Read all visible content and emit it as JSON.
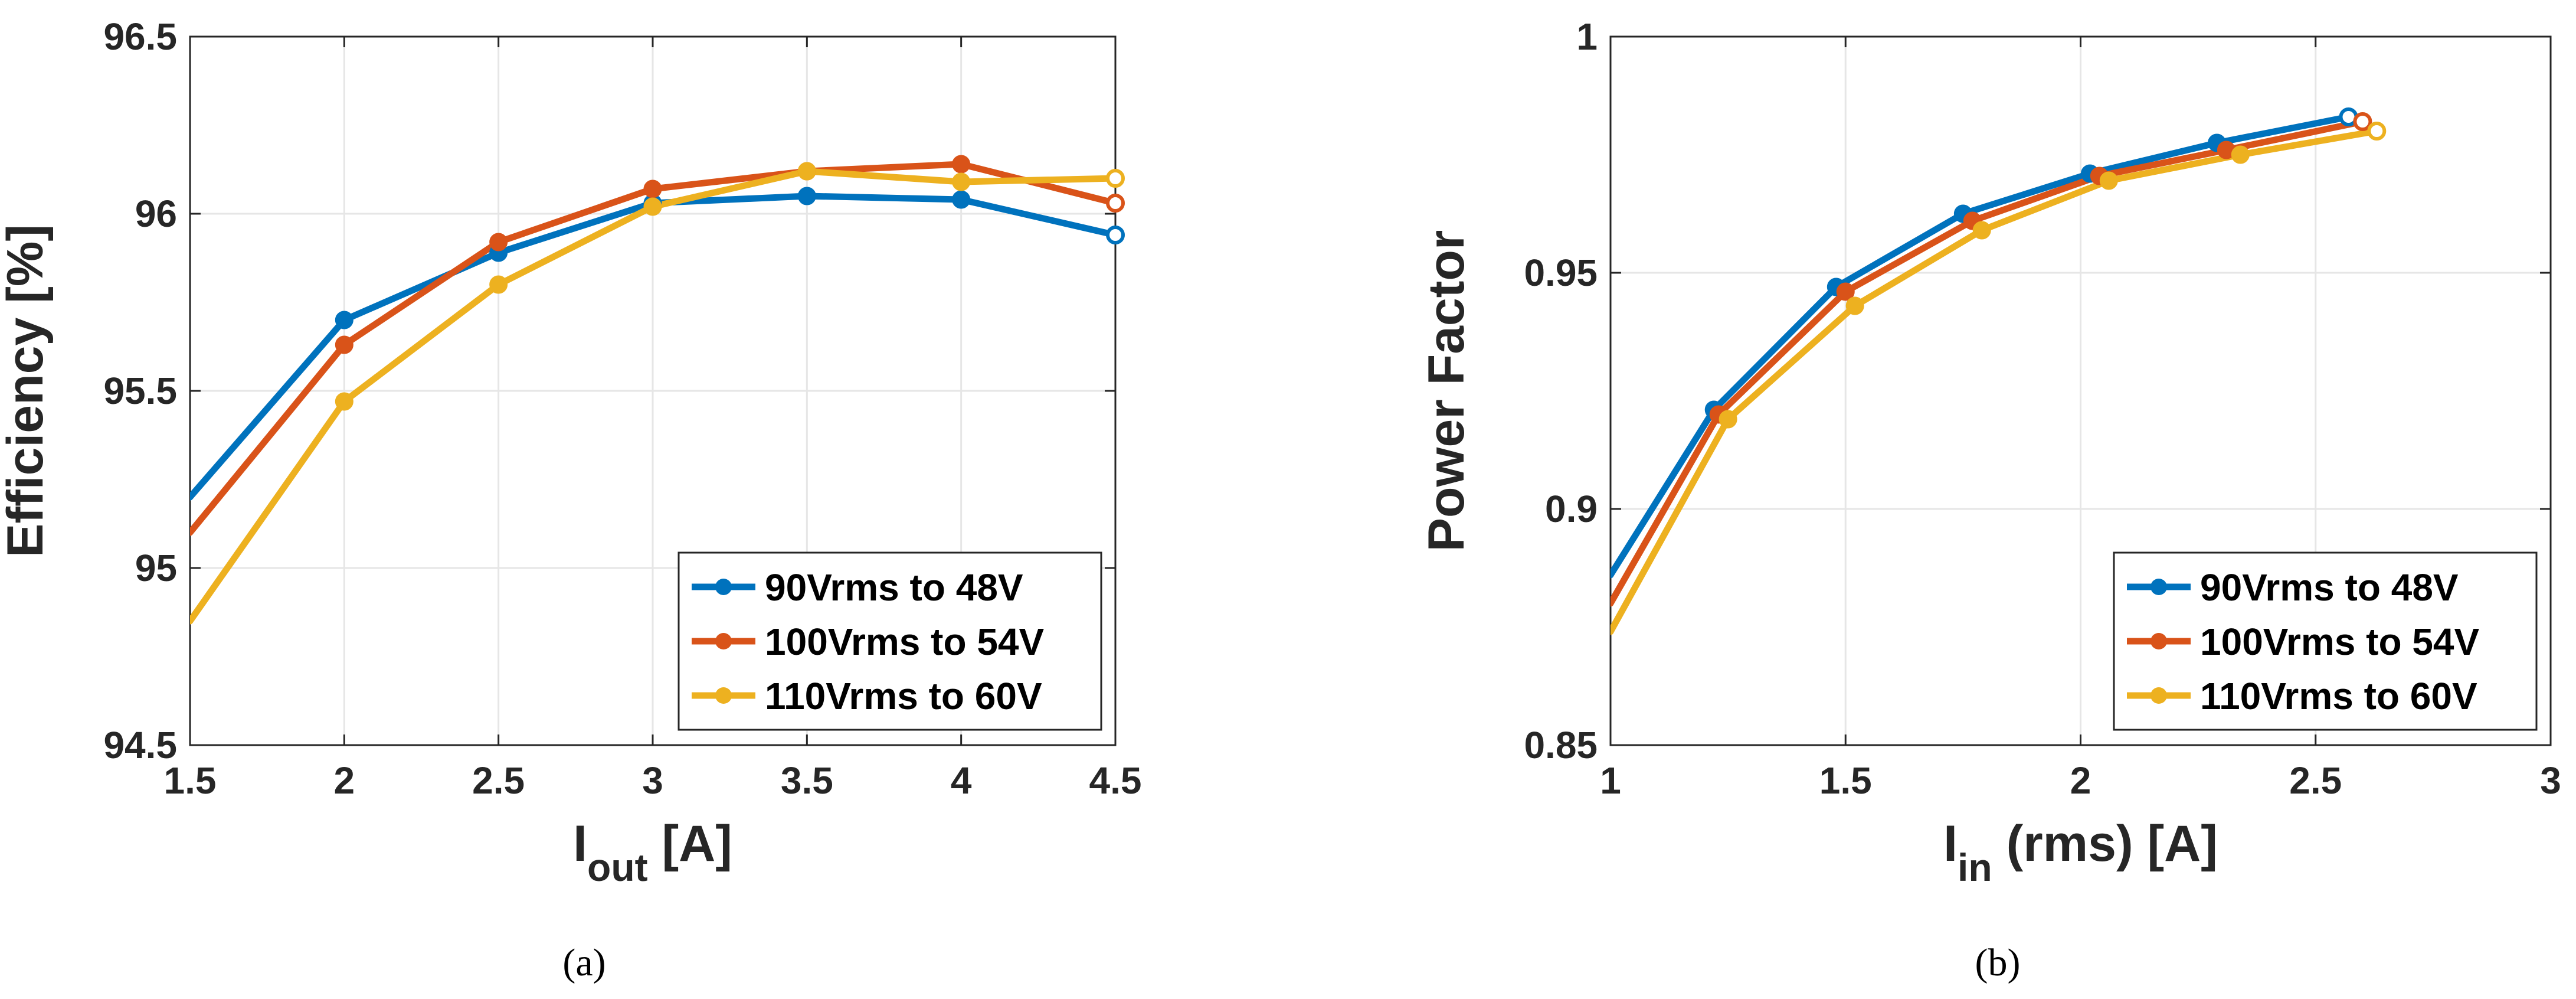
{
  "chart_data": [
    {
      "type": "line",
      "panel": "a",
      "caption": "(a)",
      "ylabel": "Efficiency [%]",
      "xlabel_main": "I",
      "xlabel_sub": "out",
      "xlabel_rest": " [A]",
      "xlim": [
        1.5,
        4.5
      ],
      "ylim": [
        94.5,
        96.5
      ],
      "xticks": [
        1.5,
        2,
        2.5,
        3,
        3.5,
        4,
        4.5
      ],
      "xtick_labels": [
        "1.5",
        "2",
        "2.5",
        "3",
        "3.5",
        "4",
        "4.5"
      ],
      "yticks": [
        94.5,
        95,
        95.5,
        96,
        96.5
      ],
      "ytick_labels": [
        "94.5",
        "95",
        "95.5",
        "96",
        "96.5"
      ],
      "grid": true,
      "legend_position": "bottom-right",
      "series": [
        {
          "name": "90Vrms to 48V",
          "color": "#0072BD",
          "x": [
            1.5,
            2,
            2.5,
            3,
            3.5,
            4,
            4.5
          ],
          "y": [
            95.2,
            95.7,
            95.89,
            96.03,
            96.05,
            96.04,
            95.94
          ],
          "markers": [
            false,
            true,
            true,
            true,
            true,
            true,
            true
          ]
        },
        {
          "name": "100Vrms to 54V",
          "color": "#D95319",
          "x": [
            1.5,
            2,
            2.5,
            3,
            3.5,
            4,
            4.5
          ],
          "y": [
            95.1,
            95.63,
            95.92,
            96.07,
            96.12,
            96.14,
            96.03
          ],
          "markers": [
            false,
            true,
            true,
            true,
            true,
            true,
            true
          ]
        },
        {
          "name": "110Vrms to 60V",
          "color": "#EDB120",
          "x": [
            1.5,
            2,
            2.5,
            3,
            3.5,
            4,
            4.5
          ],
          "y": [
            94.85,
            95.47,
            95.8,
            96.02,
            96.12,
            96.09,
            96.1
          ],
          "markers": [
            false,
            true,
            true,
            true,
            true,
            true,
            true
          ]
        }
      ]
    },
    {
      "type": "line",
      "panel": "b",
      "caption": "(b)",
      "ylabel": "Power Factor",
      "xlabel_main": "I",
      "xlabel_sub": "in",
      "xlabel_rest": " (rms) [A]",
      "xlim": [
        1,
        3
      ],
      "ylim": [
        0.85,
        1
      ],
      "xticks": [
        1,
        1.5,
        2,
        2.5,
        3
      ],
      "xtick_labels": [
        "1",
        "1.5",
        "2",
        "2.5",
        "3"
      ],
      "yticks": [
        0.85,
        0.9,
        0.95,
        1
      ],
      "ytick_labels": [
        "0.85",
        "0.9",
        "0.95",
        "1"
      ],
      "grid": true,
      "legend_position": "bottom-right",
      "series": [
        {
          "name": "90Vrms to 48V",
          "color": "#0072BD",
          "x": [
            1,
            1.22,
            1.48,
            1.75,
            2.02,
            2.29,
            2.57
          ],
          "y": [
            0.886,
            0.921,
            0.947,
            0.9625,
            0.971,
            0.9775,
            0.983
          ],
          "markers": [
            false,
            true,
            true,
            true,
            true,
            true,
            true
          ]
        },
        {
          "name": "100Vrms to 54V",
          "color": "#D95319",
          "x": [
            1,
            1.23,
            1.5,
            1.77,
            2.04,
            2.31,
            2.6
          ],
          "y": [
            0.88,
            0.92,
            0.946,
            0.961,
            0.9705,
            0.976,
            0.982
          ],
          "markers": [
            false,
            true,
            true,
            true,
            true,
            true,
            true
          ]
        },
        {
          "name": "110Vrms to 60V",
          "color": "#EDB120",
          "x": [
            1,
            1.25,
            1.52,
            1.79,
            2.06,
            2.34,
            2.63
          ],
          "y": [
            0.874,
            0.919,
            0.943,
            0.959,
            0.9695,
            0.975,
            0.98
          ],
          "markers": [
            false,
            true,
            true,
            true,
            true,
            true,
            true
          ]
        }
      ]
    }
  ]
}
